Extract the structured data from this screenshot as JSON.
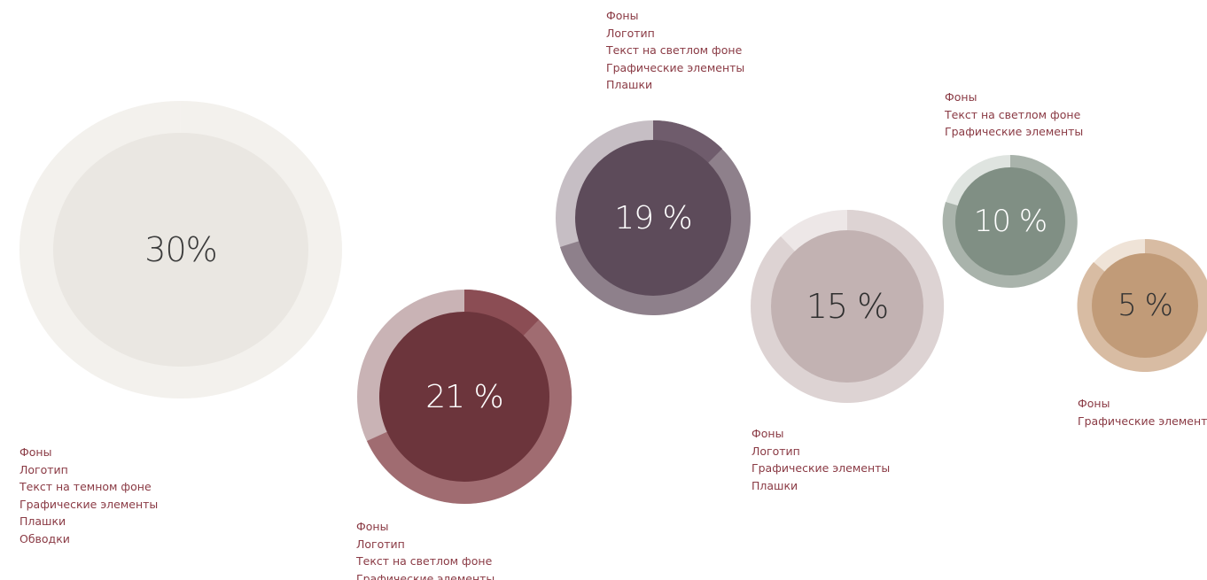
{
  "swatches": [
    {
      "id": "swatch-1",
      "percent_label": "30%",
      "share": 0.3,
      "colors": {
        "fill": "#eae7e2",
        "ring_main": "#f2f0ec",
        "ring_light": "#f7f5f2",
        "text": "#3a3a3a"
      },
      "usage": [
        "Фоны",
        "Логотип",
        "Текст на темном фоне",
        "Графические элементы",
        "Плашки",
        "Обводки"
      ]
    },
    {
      "id": "swatch-2",
      "percent_label": "21 %",
      "share": 0.21,
      "colors": {
        "fill": "#6c353c",
        "ring_main": "#9e6b70",
        "ring_light": "#ddd0d2",
        "text": "#ffffff"
      },
      "usage": [
        "Фоны",
        "Логотип",
        "Текст на светлом фоне",
        "Графические элементы"
      ]
    },
    {
      "id": "swatch-3",
      "percent_label": "19 %",
      "share": 0.19,
      "colors": {
        "fill": "#5d4b5a",
        "ring_main": "#8d7f8a",
        "ring_light": "#d5cfd3",
        "text": "#ffffff"
      },
      "usage": [
        "Фоны",
        "Логотип",
        "Текст на светлом фоне",
        "Графические элементы",
        "Плашки"
      ]
    },
    {
      "id": "swatch-4",
      "percent_label": "15 %",
      "share": 0.15,
      "colors": {
        "fill": "#c2b2b2",
        "ring_main": "#dcd3d3",
        "ring_light": "#efeaea",
        "text": "#3a3a3a"
      },
      "usage": [
        "Фоны",
        "Логотип",
        "Графические элементы",
        "Плашки"
      ]
    },
    {
      "id": "swatch-5",
      "percent_label": "10 %",
      "share": 0.1,
      "colors": {
        "fill": "#808f84",
        "ring_main": "#a6b0a8",
        "ring_light": "#dde2de",
        "text": "#ffffff"
      },
      "usage": [
        "Фоны",
        "Текст на светлом фоне",
        "Графические элементы"
      ]
    },
    {
      "id": "swatch-6",
      "percent_label": "5 %",
      "share": 0.05,
      "colors": {
        "fill": "#c19b78",
        "ring_main": "#d6b99f",
        "ring_light": "#efe2d5",
        "text": "#3a3a3a"
      },
      "usage": [
        "Фоны",
        "Графические элементы"
      ]
    }
  ]
}
